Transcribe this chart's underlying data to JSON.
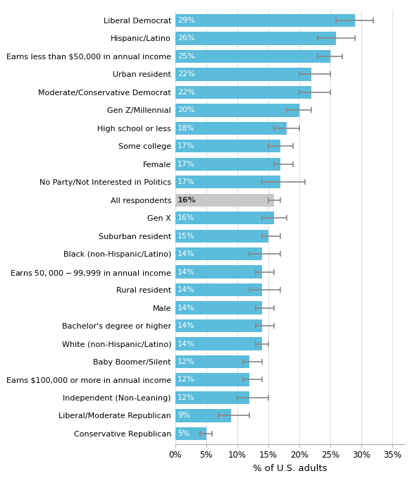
{
  "categories": [
    "Liberal Democrat",
    "Hispanic/Latino",
    "Earns less than $50,000 in annual income",
    "Urban resident",
    "Moderate/Conservative Democrat",
    "Gen Z/Millennial",
    "High school or less",
    "Some college",
    "Female",
    "No Party/Not Interested in Politics",
    "All respondents",
    "Gen X",
    "Suburban resident",
    "Black (non-Hispanic/Latino)",
    "Earns $50,000-$99,999 in annual income",
    "Rural resident",
    "Male",
    "Bachelor's degree or higher",
    "White (non-Hispanic/Latino)",
    "Baby Boomer/Silent",
    "Earns $100,000 or more in annual income",
    "Independent (Non-Leaning)",
    "Liberal/Moderate Republican",
    "Conservative Republican"
  ],
  "values": [
    29,
    26,
    25,
    22,
    22,
    20,
    18,
    17,
    17,
    17,
    16,
    16,
    15,
    14,
    14,
    14,
    14,
    14,
    14,
    12,
    12,
    12,
    9,
    5
  ],
  "error_lower": [
    3,
    3,
    2,
    2,
    2,
    2,
    2,
    2,
    1,
    3,
    1,
    2,
    1,
    2,
    1,
    2,
    1,
    1,
    1,
    1,
    1,
    2,
    2,
    1
  ],
  "error_upper": [
    3,
    3,
    2,
    3,
    3,
    2,
    2,
    2,
    2,
    4,
    1,
    2,
    2,
    3,
    2,
    3,
    2,
    2,
    1,
    2,
    2,
    3,
    3,
    1
  ],
  "bar_color_default": "#5BBCDB",
  "bar_color_highlight": "#C8C8C8",
  "highlight_index": 10,
  "text_color_default": "#FFFFFF",
  "text_color_highlight": "#333333",
  "xlabel": "% of U.S. adults",
  "xlim": [
    0,
    37
  ],
  "xticks": [
    0,
    5,
    10,
    15,
    20,
    25,
    30,
    35
  ],
  "xticklabels": [
    "0%",
    "5%",
    "10%",
    "15%",
    "20%",
    "25%",
    "30%",
    "35%"
  ],
  "bar_height": 0.72,
  "errorbar_color": "#888888",
  "errorbar_linewidth": 1.2,
  "errorbar_capsize": 3,
  "label_fontsize": 8.0,
  "tick_fontsize": 8.5,
  "xlabel_fontsize": 9.5,
  "ytick_fontsize": 8.0
}
